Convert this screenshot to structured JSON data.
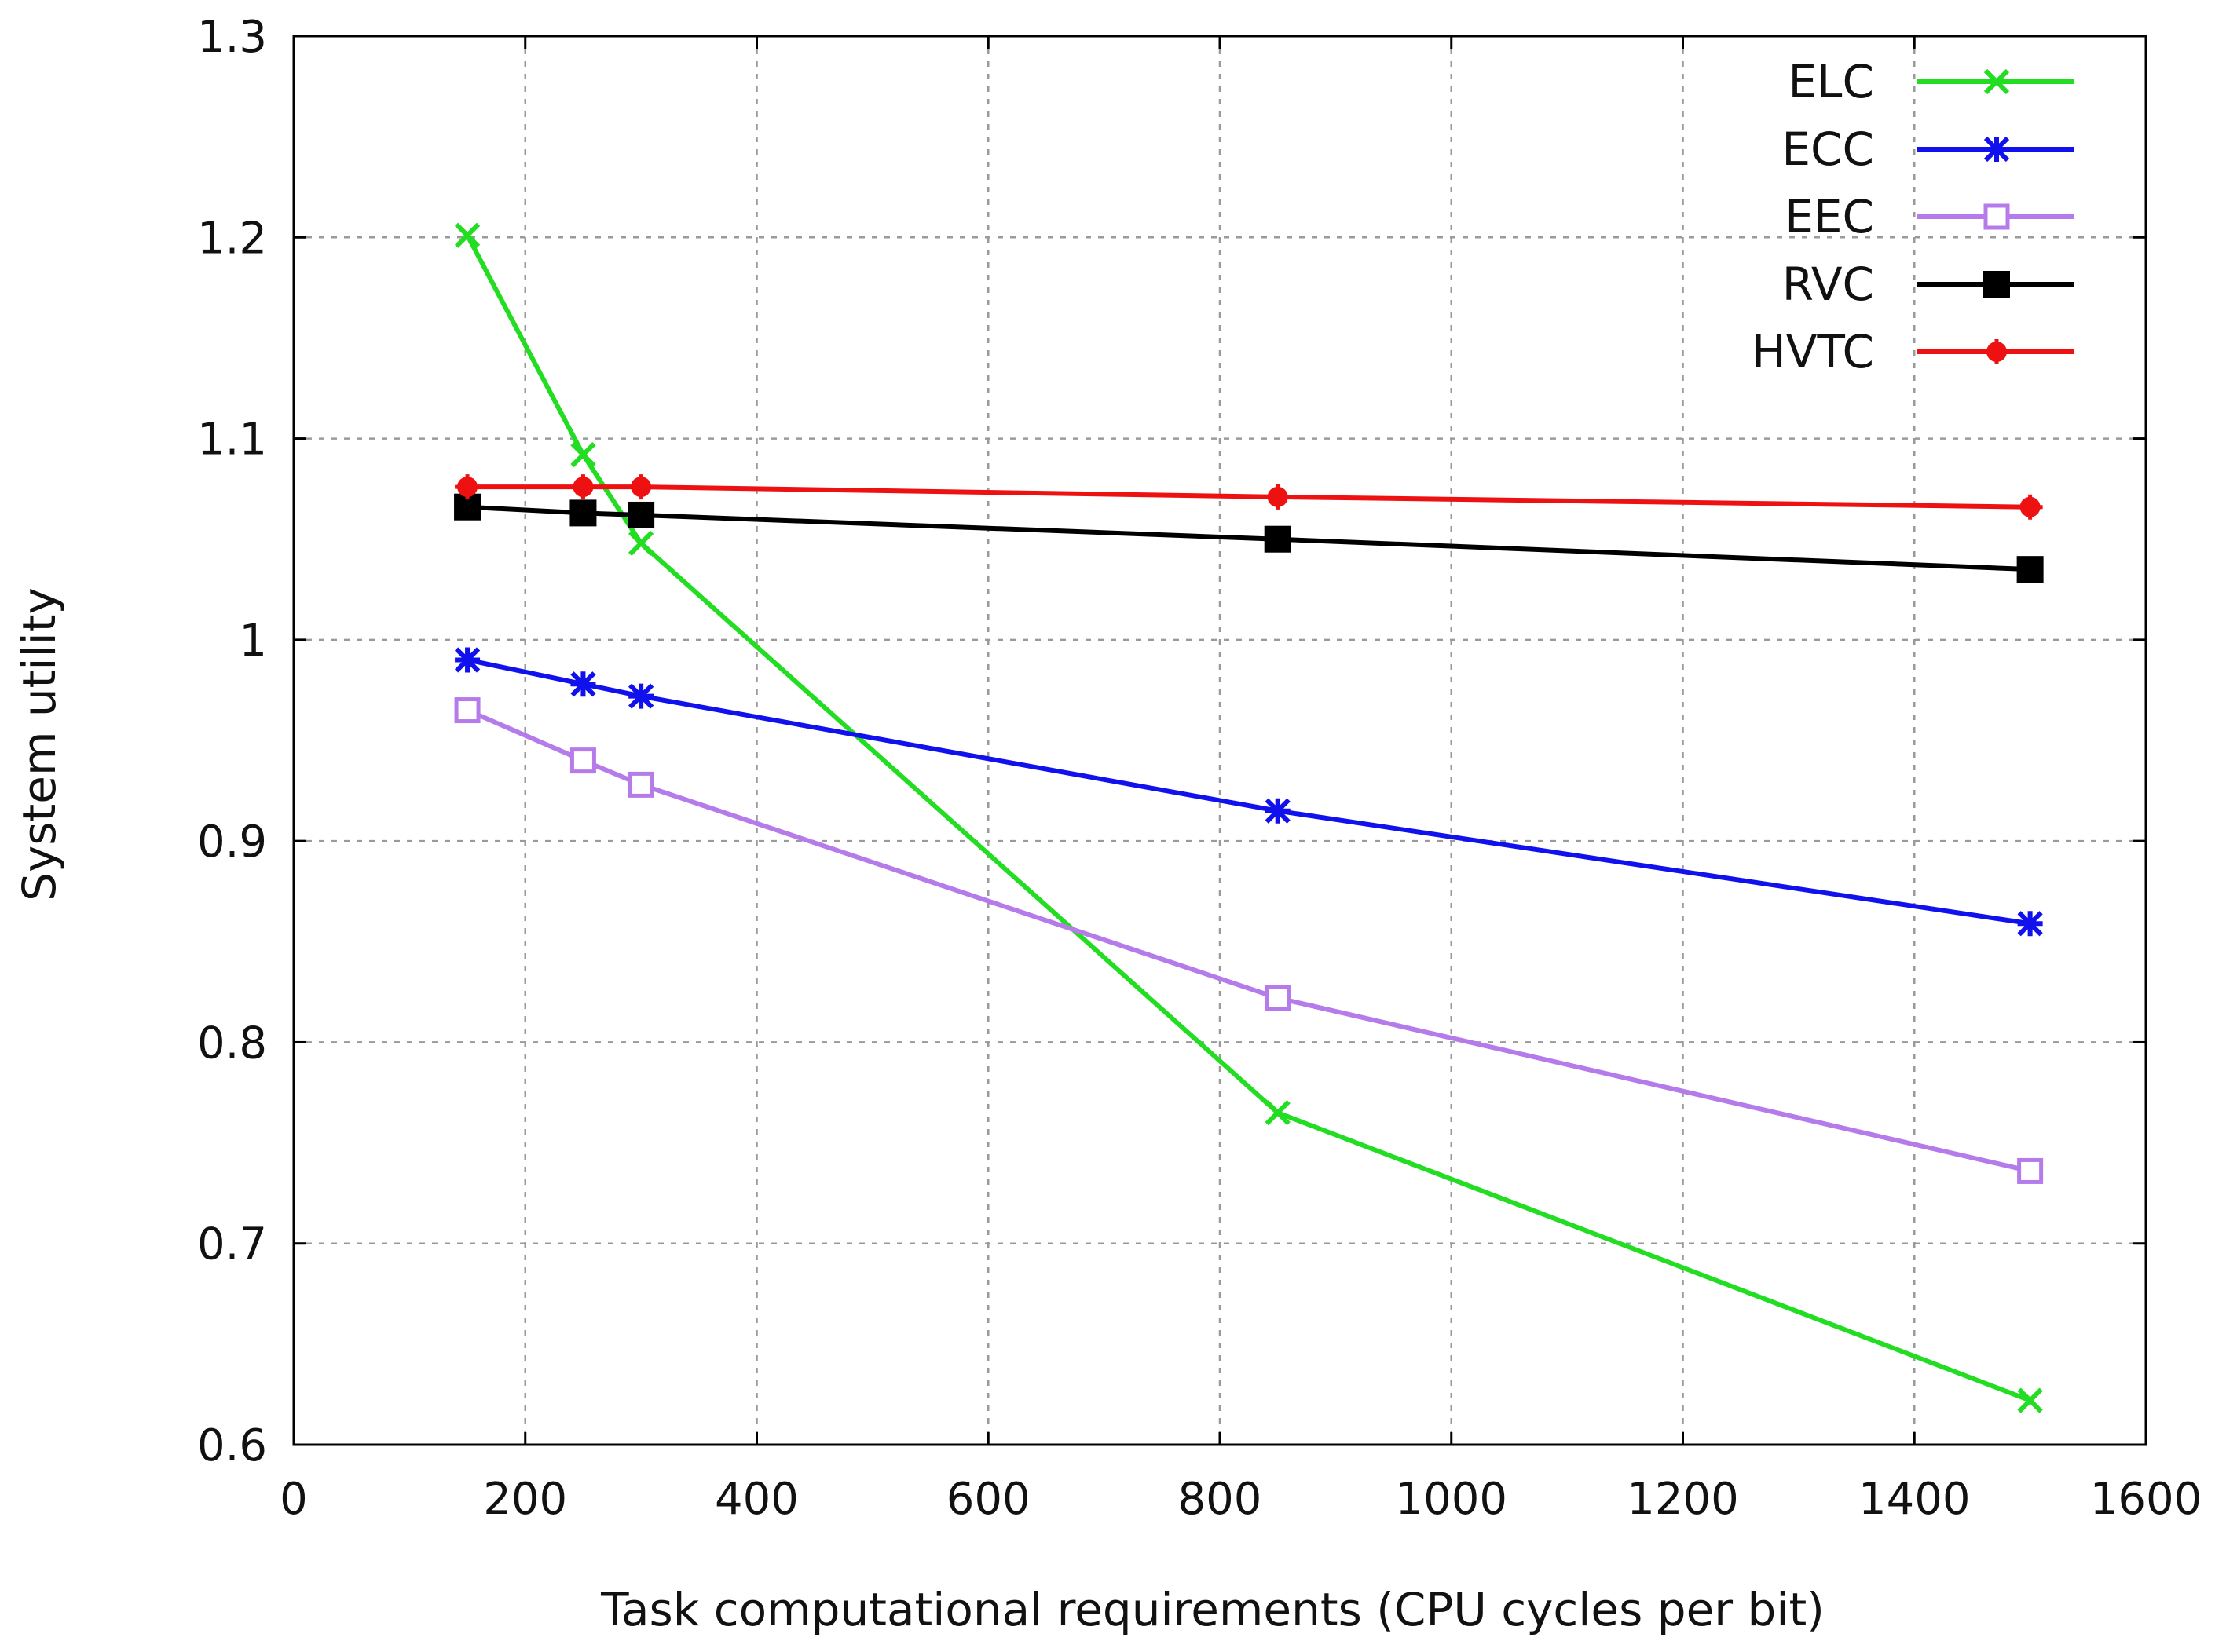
{
  "chart_data": {
    "type": "line",
    "title": "",
    "xlabel": "Task computational requirements (CPU cycles per bit)",
    "ylabel": "System utility",
    "xlim": [
      0,
      1600
    ],
    "ylim": [
      0.6,
      1.3
    ],
    "xticks": [
      0,
      200,
      400,
      600,
      800,
      1000,
      1200,
      1400,
      1600
    ],
    "xtick_labels": [
      "0",
      "200",
      "400",
      "600",
      "800",
      "1000",
      "1200",
      "1400",
      "1600"
    ],
    "yticks": [
      0.6,
      0.7,
      0.8,
      0.9,
      1.0,
      1.1,
      1.2,
      1.3
    ],
    "ytick_labels": [
      "0.6",
      "0.7",
      "0.8",
      "0.9",
      "1",
      "1.1",
      "1.2",
      "1.3"
    ],
    "grid": true,
    "legend_position": "top-right",
    "x": [
      150,
      250,
      300,
      850,
      1500
    ],
    "series": [
      {
        "name": "ELC",
        "color": "#22dd22",
        "marker": "x",
        "values": [
          1.201,
          1.092,
          1.048,
          0.765,
          0.622
        ]
      },
      {
        "name": "ECC",
        "color": "#1111ee",
        "marker": "asterisk",
        "values": [
          0.99,
          0.978,
          0.972,
          0.915,
          0.859
        ]
      },
      {
        "name": "EEC",
        "color": "#b57bea",
        "marker": "open-square",
        "values": [
          0.965,
          0.94,
          0.928,
          0.822,
          0.736
        ]
      },
      {
        "name": "RVC",
        "color": "#000000",
        "marker": "filled-square",
        "values": [
          1.066,
          1.063,
          1.062,
          1.05,
          1.035
        ]
      },
      {
        "name": "HVTC",
        "color": "#ee1111",
        "marker": "filled-circle",
        "values": [
          1.076,
          1.076,
          1.076,
          1.071,
          1.066
        ]
      }
    ]
  }
}
